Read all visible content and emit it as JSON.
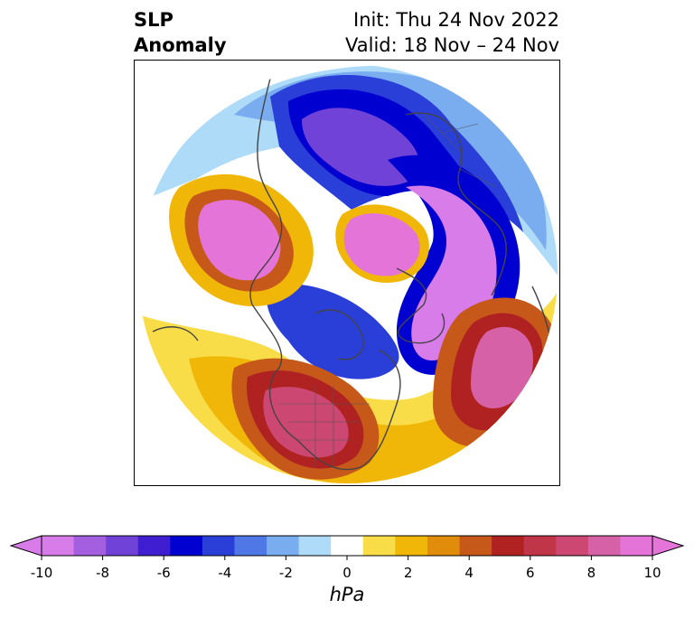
{
  "title": {
    "left_line1": "SLP",
    "left_line2": "Anomaly",
    "right_line1": "Init: Thu 24 Nov 2022",
    "right_line2": "Valid: 18 Nov – 24 Nov"
  },
  "colorbar": {
    "unit": "hPa",
    "ticks": [
      "-10",
      "-8",
      "-6",
      "-4",
      "-2",
      "0",
      "2",
      "4",
      "6",
      "8",
      "10"
    ],
    "colors": [
      "#d77ce8",
      "#a45ee0",
      "#7042d8",
      "#3f1ed2",
      "#0000d0",
      "#2a3ed8",
      "#4f77e6",
      "#7aacf0",
      "#aedcf8",
      "#ffffff",
      "#f9dd48",
      "#f1b708",
      "#e18d0b",
      "#c6591a",
      "#b02222",
      "#c03548",
      "#cc4772",
      "#d761a6",
      "#e474d8"
    ],
    "under_color": "#d77ce8",
    "over_color": "#e474d8"
  }
}
